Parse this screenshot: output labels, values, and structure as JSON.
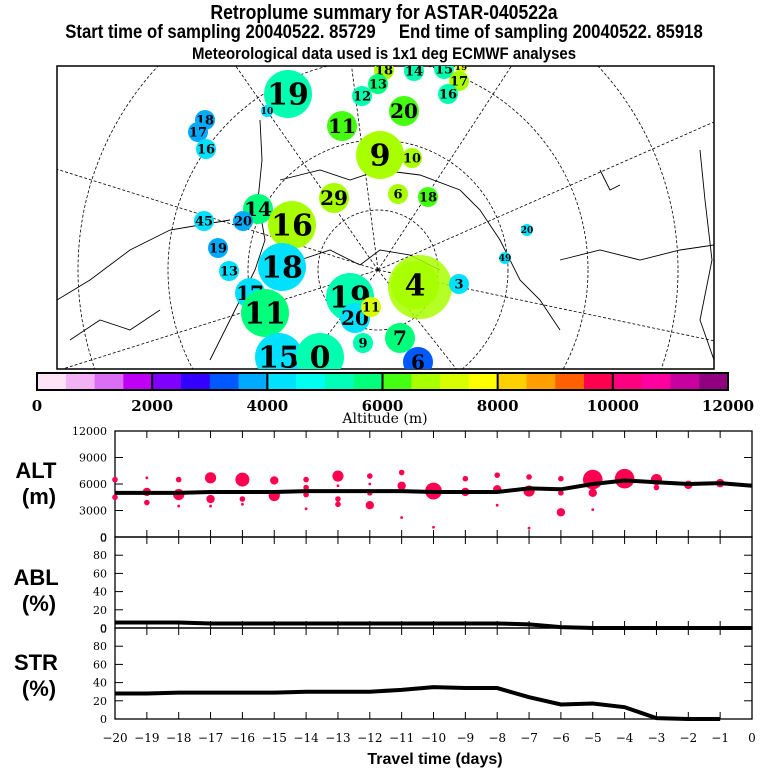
{
  "header": {
    "title": "Retroplume summary for ASTAR-040522a",
    "sampling": "Start time of sampling 20040522. 85729     End time of sampling 20040522. 85918",
    "met_data": "Meteorological data used is 1x1 deg ECMWF analyses"
  },
  "colorbar": {
    "label": "Altitude (m)",
    "ticks": [
      "0",
      "2000",
      "4000",
      "6000",
      "8000",
      "10000",
      "12000"
    ],
    "range": [
      0,
      12000
    ],
    "colors": [
      "#ffe4f8",
      "#f2b2f5",
      "#dc6ef5",
      "#be00f5",
      "#8000ff",
      "#3300ff",
      "#0059ff",
      "#00aaff",
      "#00e0ff",
      "#00fff0",
      "#00ffb8",
      "#00ff7a",
      "#44ff11",
      "#a8ff00",
      "#d8ff00",
      "#ffff00",
      "#ffd000",
      "#ffa000",
      "#ff6000",
      "#ff0050",
      "#ff0080",
      "#ff00a0",
      "#c800a0",
      "#900080"
    ]
  },
  "map": {
    "labels": [
      {
        "text": "19",
        "color": "#00ffb0",
        "size": "large"
      },
      {
        "text": "18",
        "color": "#00aaff",
        "size": "small"
      },
      {
        "text": "17",
        "color": "#00aaff",
        "size": "small"
      },
      {
        "text": "16",
        "color": "#00e0ff",
        "size": "small"
      },
      {
        "text": "10",
        "color": "#00e0ff",
        "size": "tiny"
      },
      {
        "text": "18",
        "color": "#a8ff00",
        "size": "small"
      },
      {
        "text": "14",
        "color": "#00ffb0",
        "size": "small"
      },
      {
        "text": "15",
        "color": "#00ffb0",
        "size": "small"
      },
      {
        "text": "19",
        "color": "#d8ff00",
        "size": "tiny"
      },
      {
        "text": "17",
        "color": "#a8ff00",
        "size": "small"
      },
      {
        "text": "13",
        "color": "#00ff7a",
        "size": "small"
      },
      {
        "text": "12",
        "color": "#00ffb0",
        "size": "small"
      },
      {
        "text": "16",
        "color": "#00ffb0",
        "size": "small"
      },
      {
        "text": "20",
        "color": "#44ff11",
        "size": "medium"
      },
      {
        "text": "11",
        "color": "#44ff11",
        "size": "medium"
      },
      {
        "text": "9",
        "color": "#a8ff00",
        "size": "large"
      },
      {
        "text": "10",
        "color": "#a8ff00",
        "size": "small"
      },
      {
        "text": "6",
        "color": "#a8ff00",
        "size": "small"
      },
      {
        "text": "18",
        "color": "#44ff11",
        "size": "small"
      },
      {
        "text": "29",
        "color": "#a8ff00",
        "size": "medium"
      },
      {
        "text": "14",
        "color": "#00ff7a",
        "size": "medium"
      },
      {
        "text": "20",
        "color": "#00aaff",
        "size": "small"
      },
      {
        "text": "45",
        "color": "#00e0ff",
        "size": "small"
      },
      {
        "text": "16",
        "color": "#a8ff00",
        "size": "large"
      },
      {
        "text": "19",
        "color": "#00aaff",
        "size": "small"
      },
      {
        "text": "13",
        "color": "#00e0ff",
        "size": "small"
      },
      {
        "text": "18",
        "color": "#00e0ff",
        "size": "large"
      },
      {
        "text": "17",
        "color": "#00e0ff",
        "size": "medium"
      },
      {
        "text": "11",
        "color": "#00ff7a",
        "size": "large"
      },
      {
        "text": "19",
        "color": "#00ffb0",
        "size": "large"
      },
      {
        "text": "20",
        "color": "#00e0ff",
        "size": "medium"
      },
      {
        "text": "11",
        "color": "#d8ff00",
        "size": "small"
      },
      {
        "text": "15",
        "color": "#00e0ff",
        "size": "large"
      },
      {
        "text": "0",
        "color": "#00ffb0",
        "size": "large"
      },
      {
        "text": "4",
        "color": "#a8ff00",
        "size": "large"
      },
      {
        "text": "7",
        "color": "#00ff7a",
        "size": "medium"
      },
      {
        "text": "9",
        "color": "#00ffb0",
        "size": "small"
      },
      {
        "text": "6",
        "color": "#0059ff",
        "size": "medium"
      },
      {
        "text": "3",
        "color": "#00e0ff",
        "size": "small"
      },
      {
        "text": "20",
        "color": "#00e0ff",
        "size": "tiny"
      },
      {
        "text": "49",
        "color": "#00e0ff",
        "size": "tiny"
      }
    ]
  },
  "chart_data": [
    {
      "type": "scatter",
      "panel": "ALT",
      "ylabel": "ALT\n(m)",
      "ylim": [
        0,
        12000
      ],
      "yticks": [
        "0",
        "3000",
        "6000",
        "9000",
        "12000"
      ],
      "xlim": [
        -20,
        0
      ],
      "line_color": "#000000",
      "point_color": "#ff0050",
      "mean_line": {
        "x": [
          -20,
          -19,
          -18,
          -17,
          -16,
          -15,
          -14,
          -13,
          -12,
          -11,
          -10,
          -9,
          -8,
          -7,
          -6,
          -5,
          -4,
          -3,
          -2,
          -1,
          0
        ],
        "y": [
          5000,
          5000,
          5000,
          5100,
          5100,
          5100,
          5200,
          5200,
          5200,
          5200,
          5100,
          5100,
          5100,
          5500,
          5400,
          6000,
          6400,
          6200,
          6000,
          6100,
          5800
        ]
      },
      "points": [
        {
          "x": -20,
          "y": 6500,
          "r": 2
        },
        {
          "x": -20,
          "y": 4500,
          "r": 2
        },
        {
          "x": -19,
          "y": 6700,
          "r": 1
        },
        {
          "x": -19,
          "y": 5100,
          "r": 3
        },
        {
          "x": -19,
          "y": 3900,
          "r": 2
        },
        {
          "x": -18,
          "y": 6500,
          "r": 2
        },
        {
          "x": -18,
          "y": 4800,
          "r": 4
        },
        {
          "x": -18,
          "y": 3500,
          "r": 1
        },
        {
          "x": -17,
          "y": 6700,
          "r": 4
        },
        {
          "x": -17,
          "y": 4300,
          "r": 3
        },
        {
          "x": -17,
          "y": 3500,
          "r": 1
        },
        {
          "x": -16,
          "y": 6500,
          "r": 5
        },
        {
          "x": -16,
          "y": 4300,
          "r": 2
        },
        {
          "x": -16,
          "y": 3700,
          "r": 1
        },
        {
          "x": -15,
          "y": 6400,
          "r": 3
        },
        {
          "x": -15,
          "y": 4700,
          "r": 4
        },
        {
          "x": -14,
          "y": 6500,
          "r": 2
        },
        {
          "x": -14,
          "y": 5600,
          "r": 2
        },
        {
          "x": -14,
          "y": 4800,
          "r": 2
        },
        {
          "x": -14,
          "y": 3200,
          "r": 1
        },
        {
          "x": -13,
          "y": 6900,
          "r": 4
        },
        {
          "x": -13,
          "y": 5800,
          "r": 1
        },
        {
          "x": -13,
          "y": 4300,
          "r": 2
        },
        {
          "x": -13,
          "y": 3700,
          "r": 2
        },
        {
          "x": -12,
          "y": 6900,
          "r": 2
        },
        {
          "x": -12,
          "y": 6000,
          "r": 1
        },
        {
          "x": -12,
          "y": 5000,
          "r": 2
        },
        {
          "x": -12,
          "y": 3600,
          "r": 3
        },
        {
          "x": -11,
          "y": 7300,
          "r": 2
        },
        {
          "x": -11,
          "y": 5800,
          "r": 3
        },
        {
          "x": -11,
          "y": 2200,
          "r": 1
        },
        {
          "x": -10,
          "y": 5200,
          "r": 6
        },
        {
          "x": -10,
          "y": 1100,
          "r": 1
        },
        {
          "x": -9,
          "y": 6600,
          "r": 2
        },
        {
          "x": -9,
          "y": 5100,
          "r": 3
        },
        {
          "x": -8,
          "y": 7000,
          "r": 2
        },
        {
          "x": -8,
          "y": 5400,
          "r": 3
        },
        {
          "x": -8,
          "y": 3600,
          "r": 1
        },
        {
          "x": -7,
          "y": 6800,
          "r": 2
        },
        {
          "x": -7,
          "y": 5200,
          "r": 4
        },
        {
          "x": -7,
          "y": 1000,
          "r": 1
        },
        {
          "x": -6,
          "y": 6600,
          "r": 2
        },
        {
          "x": -6,
          "y": 5000,
          "r": 2
        },
        {
          "x": -6,
          "y": 2800,
          "r": 3
        },
        {
          "x": -5,
          "y": 6500,
          "r": 7
        },
        {
          "x": -5,
          "y": 5000,
          "r": 3
        },
        {
          "x": -5,
          "y": 3100,
          "r": 1
        },
        {
          "x": -4,
          "y": 6600,
          "r": 7
        },
        {
          "x": -4,
          "y": 5900,
          "r": 2
        },
        {
          "x": -3,
          "y": 6500,
          "r": 4
        },
        {
          "x": -3,
          "y": 5600,
          "r": 2
        },
        {
          "x": -2,
          "y": 5900,
          "r": 3
        },
        {
          "x": -1,
          "y": 6100,
          "r": 3
        }
      ]
    },
    {
      "type": "line",
      "panel": "ABL",
      "ylabel": "ABL\n(%)",
      "ylim": [
        0,
        100
      ],
      "yticks": [
        "0",
        "20",
        "40",
        "60",
        "80",
        "0"
      ],
      "x": [
        -20,
        -19,
        -18,
        -17,
        -16,
        -15,
        -14,
        -13,
        -12,
        -11,
        -10,
        -9,
        -8,
        -7,
        -6,
        -5,
        -4,
        -3,
        -2,
        -1,
        0
      ],
      "y": [
        6,
        6,
        6,
        5,
        5,
        5,
        5,
        5,
        5,
        5,
        5,
        5,
        5,
        4,
        1,
        0,
        0,
        0,
        0,
        0,
        0
      ]
    },
    {
      "type": "line",
      "panel": "STR",
      "ylabel": "STR\n(%)",
      "ylim": [
        0,
        100
      ],
      "yticks": [
        "0",
        "20",
        "40",
        "60",
        "80",
        "0"
      ],
      "xlabel": "Travel time (days)",
      "xticks": [
        "−20",
        "−19",
        "−18",
        "−17",
        "−16",
        "−15",
        "−14",
        "−13",
        "−12",
        "−11",
        "−10",
        "−9",
        "−8",
        "−7",
        "−6",
        "−5",
        "−4",
        "−3",
        "−2",
        "−1",
        "0"
      ],
      "x": [
        -20,
        -19,
        -18,
        -17,
        -16,
        -15,
        -14,
        -13,
        -12,
        -11,
        -10,
        -9,
        -8,
        -7,
        -6,
        -5,
        -4,
        -3,
        -2,
        -1
      ],
      "y": [
        28,
        28,
        29,
        29,
        29,
        29,
        30,
        30,
        30,
        32,
        35,
        34,
        34,
        24,
        16,
        17,
        13,
        1,
        0,
        0
      ]
    }
  ]
}
